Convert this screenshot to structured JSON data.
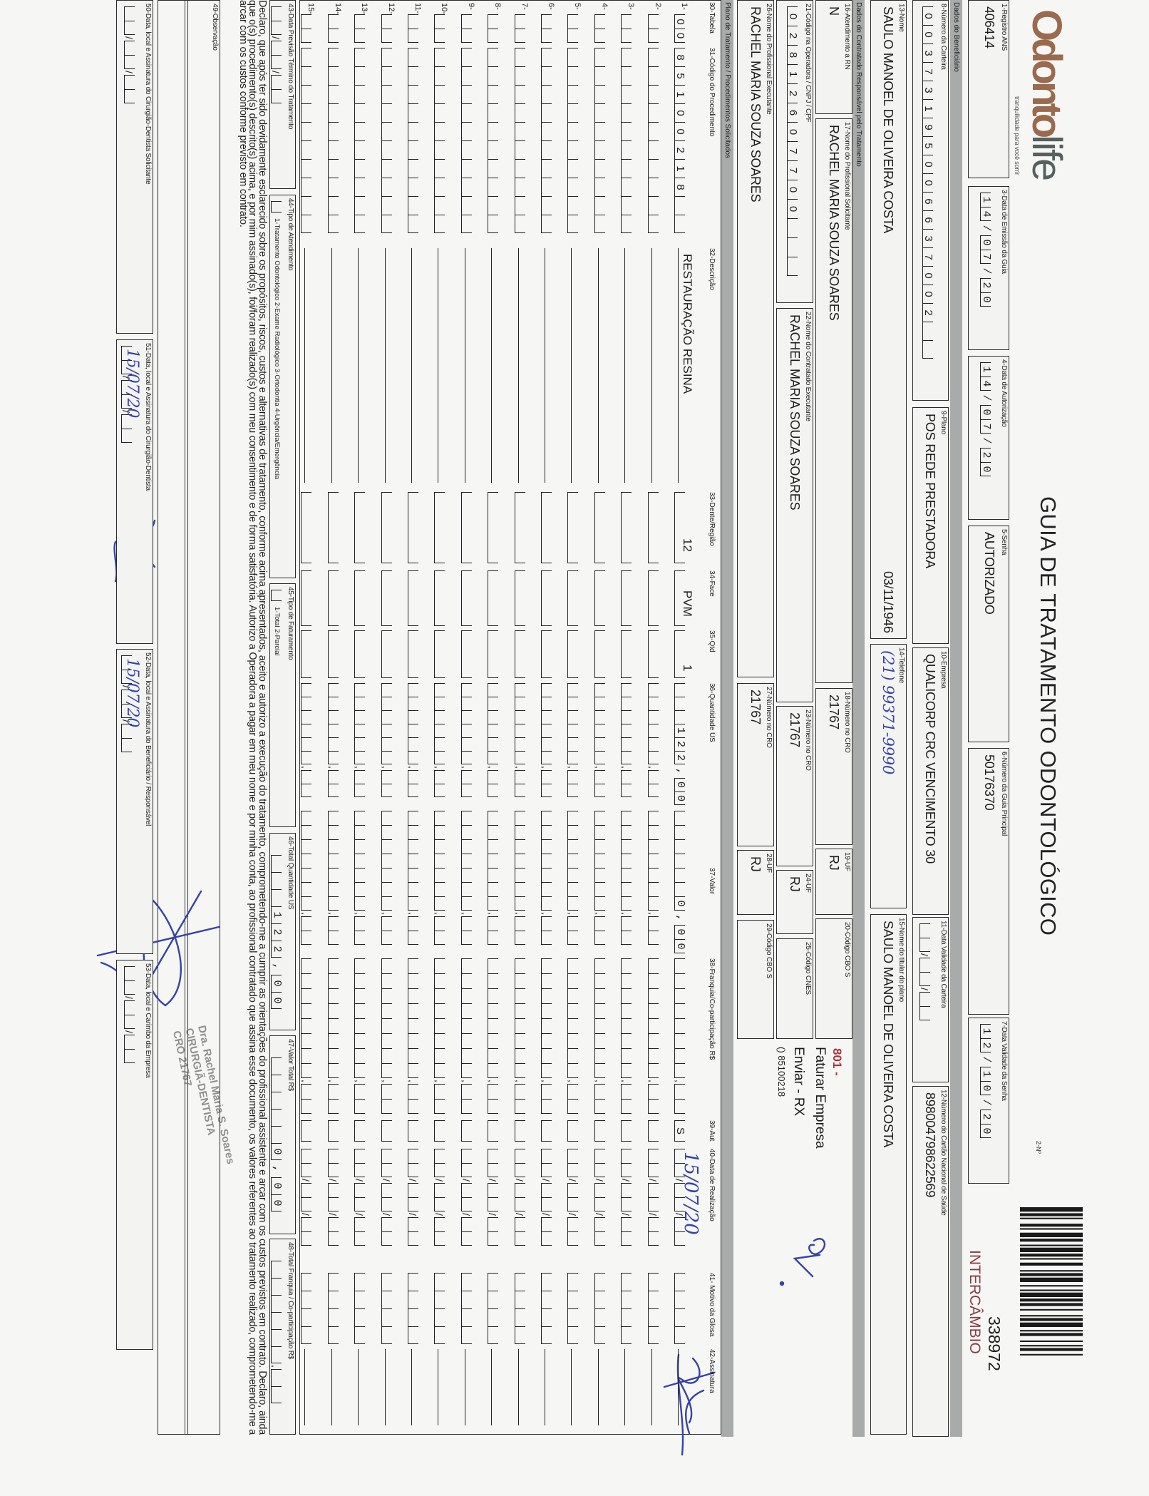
{
  "header": {
    "logo": "Odontolife",
    "tagline": "tranquilidade para você sorrir",
    "title": "GUIA DE TRATAMENTO ODONTOLÓGICO",
    "numero_label": "2-Nº",
    "numero": "338972",
    "tipo": "INTERCÂMBIO"
  },
  "sections": {
    "beneficiario": "Dados do Beneficiário",
    "contratado": "Dados do Contratado Responsável pelo Tratamento",
    "plano": "Plano de Tratamento / Procedimentos Solicitados"
  },
  "fields": {
    "f1": {
      "label": "1-Registro ANS",
      "value": "406414"
    },
    "f3": {
      "label": "3-Data de Emissão da Guia",
      "value": "14/07/20"
    },
    "f4": {
      "label": "4-Data de Autorização",
      "value": "14/07/20"
    },
    "f5": {
      "label": "5-Senha",
      "value": "AUTORIZADO"
    },
    "f6": {
      "label": "6-Número da Guia Principal",
      "value": "50176370"
    },
    "f7": {
      "label": "7-Data Validade da Senha",
      "value": "12/10/20"
    },
    "f8": {
      "label": "8-Número da Carteira",
      "value": "00373195006637002"
    },
    "f9": {
      "label": "9-Plano",
      "value": "POS REDE PRESTADORA"
    },
    "f10": {
      "label": "10-Empresa",
      "value": "QUALICORP CRC VENCIMENTO 30"
    },
    "f11": {
      "label": "11-Data Validade da Carteira",
      "value": "  /  /  "
    },
    "f12": {
      "label": "12-Número do Cartão Nacional de Saúde",
      "value": "898004798622569"
    },
    "f13": {
      "label": "13-Nome",
      "value": "SAULO MANOEL DE OLIVEIRA COSTA",
      "extra": "03/11/1946"
    },
    "f14": {
      "label": "14-Telefone",
      "value": "(21) 99371-9990"
    },
    "f15": {
      "label": "15-Nome do titular do plano",
      "value": "SAULO MANOEL DE OLIVEIRA COSTA"
    },
    "f16": {
      "label": "16-Atendimento a RN",
      "value": "N"
    },
    "f17": {
      "label": "17-Nome do Profissional Solicitante",
      "value": "RACHEL MARIA SOUZA SOARES"
    },
    "f18": {
      "label": "18-Número no CRO",
      "value": "21767"
    },
    "f19": {
      "label": "19-UF",
      "value": "RJ"
    },
    "f20": {
      "label": "20-Código CBO S",
      "value": ""
    },
    "f21": {
      "label": "21-Código na Operadora / CNPJ / CPF",
      "value": "02812607700"
    },
    "f22": {
      "label": "22-Nome do Contratado Executante",
      "value": "RACHEL MARIA SOUZA SOARES"
    },
    "f23": {
      "label": "23-Número no CRO",
      "value": "21767"
    },
    "f24": {
      "label": "24-UF",
      "value": "RJ"
    },
    "f25": {
      "label": "25-Código CNES",
      "value": ""
    },
    "f26": {
      "label": "26-Nome do Profissional Executante",
      "value": "RACHEL MARIA SOUZA SOARES"
    },
    "f27": {
      "label": "27-Número no CRO",
      "value": "21767"
    },
    "f28": {
      "label": "28-UF",
      "value": "RJ"
    },
    "f29": {
      "label": "29-Código CBO S",
      "value": ""
    },
    "f43": {
      "label": "43-Data Previsão Término do Tratamento",
      "value": "  /  /  "
    },
    "f44": {
      "label": "44-Tipo de Atendimento",
      "value": "",
      "options": "1-Tratamento Odontológico  2-Exame Radiológico  3-Ortodontia  4-Urgência/Emergência"
    },
    "f45": {
      "label": "45-Tipo de Faturamento",
      "value": "",
      "options": "1-Total  2-Parcial"
    },
    "f46": {
      "label": "46-Total Quantidade US",
      "value": "122,00"
    },
    "f47": {
      "label": "47-Valor Total R$",
      "value": "0,00"
    },
    "f48": {
      "label": "48-Total Franquia / Co-participação R$",
      "value": ","
    },
    "f50": {
      "label": "50-Data, local e Assinatura do Cirurgião-Dentista Solicitante",
      "value": "  /  /  "
    },
    "f51": {
      "label": "51-Data, local e Assinatura do Cirurgião-Dentista",
      "value": "15/07/20"
    },
    "f52": {
      "label": "52-Data, local e Assinatura do Beneficiário / Responsável",
      "value": "15/07/20"
    },
    "f53": {
      "label": "53-Data, local e Carimbo da Empresa",
      "value": "  /  /  "
    }
  },
  "annotations": {
    "code": "801 -",
    "line1": "Faturar Empresa",
    "line2": "Enviar - RX",
    "line3": "() 85100218"
  },
  "table": {
    "headers": {
      "tabela": "30-Tabela",
      "codigo": "31-Código do Procedimento",
      "descricao": "32-Descrição",
      "dente": "33-Dente/Região",
      "face": "34-Face",
      "qtd": "35-Qtd",
      "qtd_us": "36-Quantidade US",
      "valor": "37-Valor",
      "franquia": "38-Franquia/Co-participação R$",
      "aut": "39-Aut",
      "data": "40-Data de Realização",
      "motivo": "41- Motivo da Glosa",
      "assinatura": "42-Assinatura"
    },
    "rows": [
      {
        "n": "1-",
        "tabela": "00",
        "codigo": "85100218",
        "descricao": "RESTAURAÇÃO RESINA",
        "dente": "12",
        "face": "PVM",
        "qtd": "1",
        "qtd_us": "122,00",
        "valor": "0,00",
        "franquia": ",",
        "aut": "S",
        "data": "15/07/20",
        "motivo": ""
      },
      {
        "n": "2-"
      },
      {
        "n": "3-"
      },
      {
        "n": "4-"
      },
      {
        "n": "5-"
      },
      {
        "n": "6-"
      },
      {
        "n": "7-"
      },
      {
        "n": "8-"
      },
      {
        "n": "9-"
      },
      {
        "n": "10-"
      },
      {
        "n": "11-"
      },
      {
        "n": "12-"
      },
      {
        "n": "13-"
      },
      {
        "n": "14-"
      },
      {
        "n": "15-"
      }
    ]
  },
  "declaration": "Declaro, que após ter sido devidamente esclarecido sobre os propósitos, riscos, custos e alternativas de tratamento, conforme acima apresentados, aceito e autorizo a execução do tratamento, comprometendo-me a cumprir as orientações do profissional assistente e arcar com os custos previstos em contrato. Declaro, ainda que o(s) procedimento(s) descrito(s) acima, e por mim assinado(s), foi/foram realizado(s) com meu consentimento e de forma satisfatória. Autorizo a Operadora a pagar em meu nome e por minha conta, ao profissional contratado que assina esse documento, os valores referentes ao tratamento realizado, comprometendo-me a arcar com os custos conforme previsto em contrato.",
  "observacao": {
    "label": "49-Observação",
    "value": ""
  },
  "stamp": [
    "Dra. Rachel Maria S. Soares",
    "CIRURGIÃ-DENTISTA",
    "CRO 21767"
  ],
  "colors": {
    "brand": "#9a6a4e",
    "brand_secondary": "#56615f",
    "intercambio": "#8a3a44",
    "annotation_red": "#a8323a",
    "ink": "#3542a8",
    "section_bar": "#a9abab"
  }
}
